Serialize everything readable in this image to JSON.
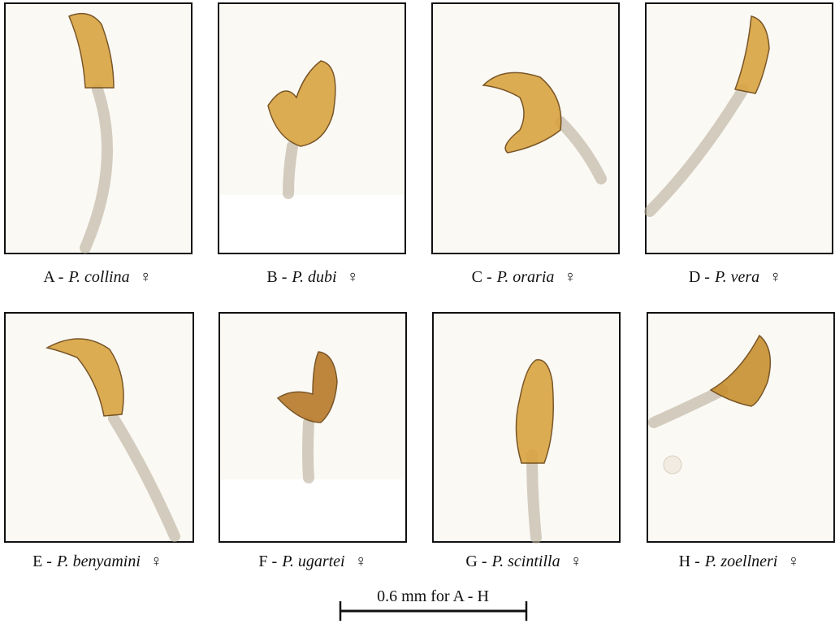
{
  "panels": [
    {
      "prefix": "A -",
      "name": "P. collina",
      "sex": "♀"
    },
    {
      "prefix": "B -",
      "name": "P. dubi",
      "sex": "♀"
    },
    {
      "prefix": "C -",
      "name": "P. oraria",
      "sex": "♀"
    },
    {
      "prefix": "D -",
      "name": "P. vera",
      "sex": "♀"
    },
    {
      "prefix": "E -",
      "name": "P. benyamini",
      "sex": "♀"
    },
    {
      "prefix": "F -",
      "name": "P. ugartei",
      "sex": "♀"
    },
    {
      "prefix": "G -",
      "name": "P. scintilla",
      "sex": "♀"
    },
    {
      "prefix": "H -",
      "name": "P. zoellneri",
      "sex": "♀"
    }
  ],
  "scale_bar": {
    "label": "0.6 mm for A - H"
  }
}
